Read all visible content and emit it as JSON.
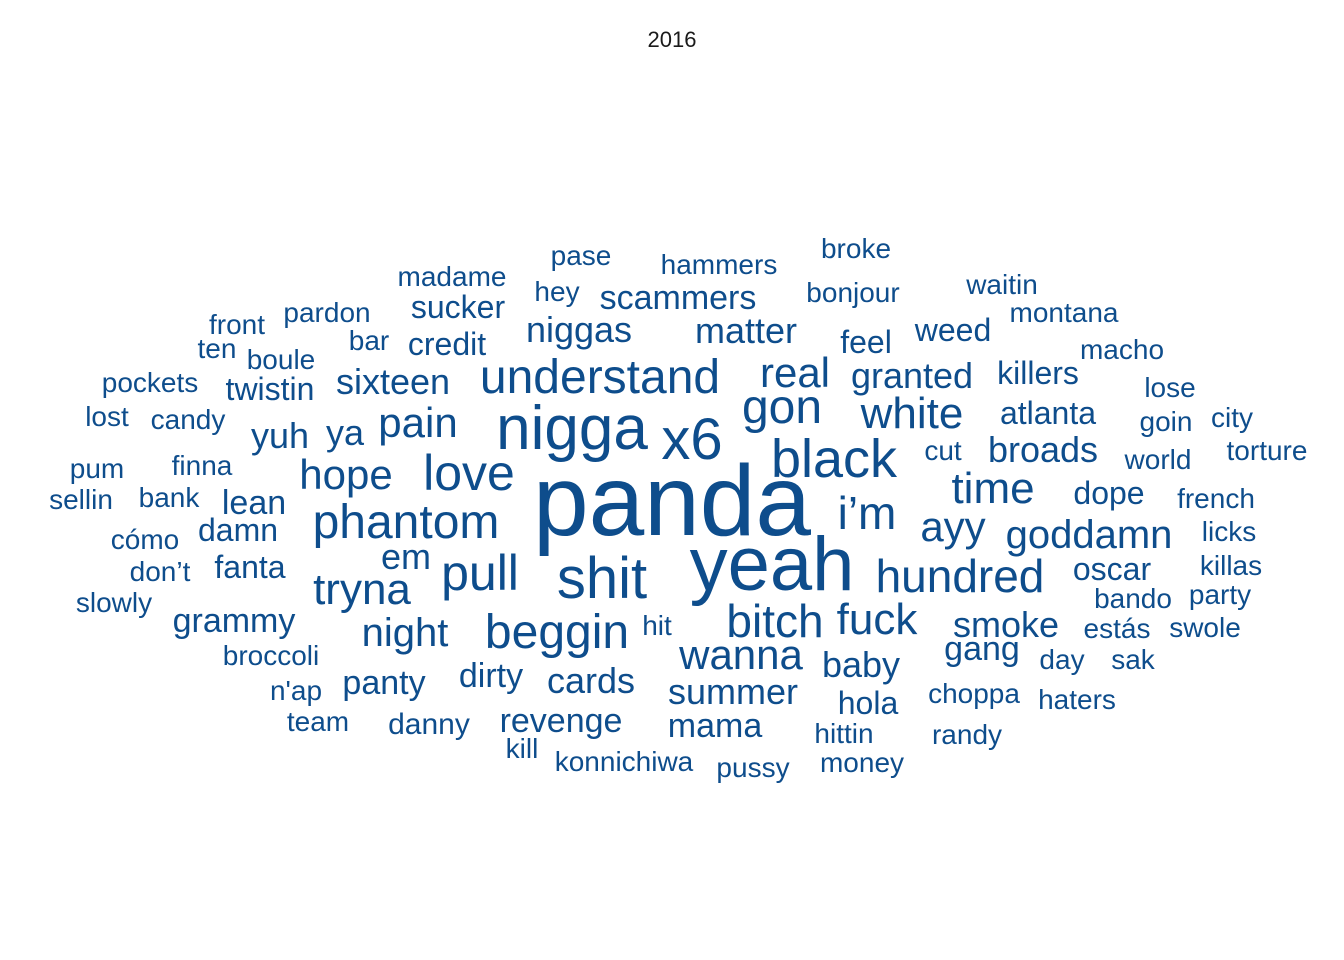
{
  "chart_data": {
    "type": "wordcloud",
    "title": "2016",
    "color": "#0e4d8c",
    "words": [
      {
        "text": "panda",
        "size": 9
      },
      {
        "text": "yeah",
        "size": 8
      },
      {
        "text": "shit",
        "size": 6
      },
      {
        "text": "nigga",
        "size": 6
      },
      {
        "text": "x6",
        "size": 6
      },
      {
        "text": "black",
        "size": 5
      },
      {
        "text": "understand",
        "size": 5
      },
      {
        "text": "love",
        "size": 5
      },
      {
        "text": "phantom",
        "size": 5
      },
      {
        "text": "pull",
        "size": 5
      },
      {
        "text": "beggin",
        "size": 5
      },
      {
        "text": "bitch",
        "size": 5
      },
      {
        "text": "fuck",
        "size": 5
      },
      {
        "text": "gon",
        "size": 5
      },
      {
        "text": "hundred",
        "size": 5
      },
      {
        "text": "i’m",
        "size": 5
      },
      {
        "text": "time",
        "size": 4
      },
      {
        "text": "tryna",
        "size": 4
      },
      {
        "text": "white",
        "size": 4
      },
      {
        "text": "pain",
        "size": 4
      },
      {
        "text": "hope",
        "size": 4
      },
      {
        "text": "ayy",
        "size": 4
      },
      {
        "text": "goddamn",
        "size": 4
      },
      {
        "text": "wanna",
        "size": 4
      },
      {
        "text": "real",
        "size": 4
      },
      {
        "text": "night",
        "size": 4
      },
      {
        "text": "em",
        "size": 4
      },
      {
        "text": "summer",
        "size": 3
      },
      {
        "text": "matter",
        "size": 3
      },
      {
        "text": "niggas",
        "size": 3
      },
      {
        "text": "cards",
        "size": 3
      },
      {
        "text": "broads",
        "size": 3
      },
      {
        "text": "sixteen",
        "size": 3
      },
      {
        "text": "yuh",
        "size": 3
      },
      {
        "text": "ya",
        "size": 3
      },
      {
        "text": "baby",
        "size": 3
      },
      {
        "text": "granted",
        "size": 3
      },
      {
        "text": "smoke",
        "size": 3
      },
      {
        "text": "revenge",
        "size": 3
      },
      {
        "text": "grammy",
        "size": 3
      },
      {
        "text": "dirty",
        "size": 3
      },
      {
        "text": "panty",
        "size": 3
      },
      {
        "text": "mama",
        "size": 3
      },
      {
        "text": "scammers",
        "size": 3
      },
      {
        "text": "atlanta",
        "size": 3
      },
      {
        "text": "lean",
        "size": 3
      },
      {
        "text": "gang",
        "size": 3
      },
      {
        "text": "dope",
        "size": 3
      },
      {
        "text": "damn",
        "size": 3
      },
      {
        "text": "twistin",
        "size": 3
      },
      {
        "text": "oscar",
        "size": 3
      },
      {
        "text": "sucker",
        "size": 3
      },
      {
        "text": "killers",
        "size": 3
      },
      {
        "text": "fanta",
        "size": 3
      },
      {
        "text": "credit",
        "size": 3
      },
      {
        "text": "hola",
        "size": 3
      },
      {
        "text": "feel",
        "size": 3
      },
      {
        "text": "danny",
        "size": 3
      },
      {
        "text": "weed",
        "size": 3
      },
      {
        "text": "hammers",
        "size": 2
      },
      {
        "text": "madame",
        "size": 2
      },
      {
        "text": "pase",
        "size": 2
      },
      {
        "text": "hey",
        "size": 2
      },
      {
        "text": "bonjour",
        "size": 2
      },
      {
        "text": "broke",
        "size": 2
      },
      {
        "text": "waitin",
        "size": 2
      },
      {
        "text": "montana",
        "size": 2
      },
      {
        "text": "pardon",
        "size": 2
      },
      {
        "text": "front",
        "size": 2
      },
      {
        "text": "ten",
        "size": 2
      },
      {
        "text": "boule",
        "size": 2
      },
      {
        "text": "bar",
        "size": 2
      },
      {
        "text": "macho",
        "size": 2
      },
      {
        "text": "pockets",
        "size": 2
      },
      {
        "text": "lose",
        "size": 2
      },
      {
        "text": "lost",
        "size": 2
      },
      {
        "text": "candy",
        "size": 2
      },
      {
        "text": "goin",
        "size": 2
      },
      {
        "text": "city",
        "size": 2
      },
      {
        "text": "cut",
        "size": 2
      },
      {
        "text": "torture",
        "size": 2
      },
      {
        "text": "world",
        "size": 2
      },
      {
        "text": "pum",
        "size": 2
      },
      {
        "text": "finna",
        "size": 2
      },
      {
        "text": "sellin",
        "size": 2
      },
      {
        "text": "bank",
        "size": 2
      },
      {
        "text": "french",
        "size": 2
      },
      {
        "text": "licks",
        "size": 2
      },
      {
        "text": "cómo",
        "size": 2
      },
      {
        "text": "don’t",
        "size": 2
      },
      {
        "text": "killas",
        "size": 2
      },
      {
        "text": "slowly",
        "size": 2
      },
      {
        "text": "bando",
        "size": 2
      },
      {
        "text": "party",
        "size": 2
      },
      {
        "text": "hit",
        "size": 2
      },
      {
        "text": "estás",
        "size": 2
      },
      {
        "text": "swole",
        "size": 2
      },
      {
        "text": "broccoli",
        "size": 2
      },
      {
        "text": "day",
        "size": 2
      },
      {
        "text": "sak",
        "size": 2
      },
      {
        "text": "n'ap",
        "size": 2
      },
      {
        "text": "choppa",
        "size": 2
      },
      {
        "text": "haters",
        "size": 2
      },
      {
        "text": "team",
        "size": 2
      },
      {
        "text": "hittin",
        "size": 2
      },
      {
        "text": "randy",
        "size": 2
      },
      {
        "text": "kill",
        "size": 2
      },
      {
        "text": "konnichiwa",
        "size": 2
      },
      {
        "text": "pussy",
        "size": 2
      },
      {
        "text": "money",
        "size": 2
      }
    ]
  }
}
